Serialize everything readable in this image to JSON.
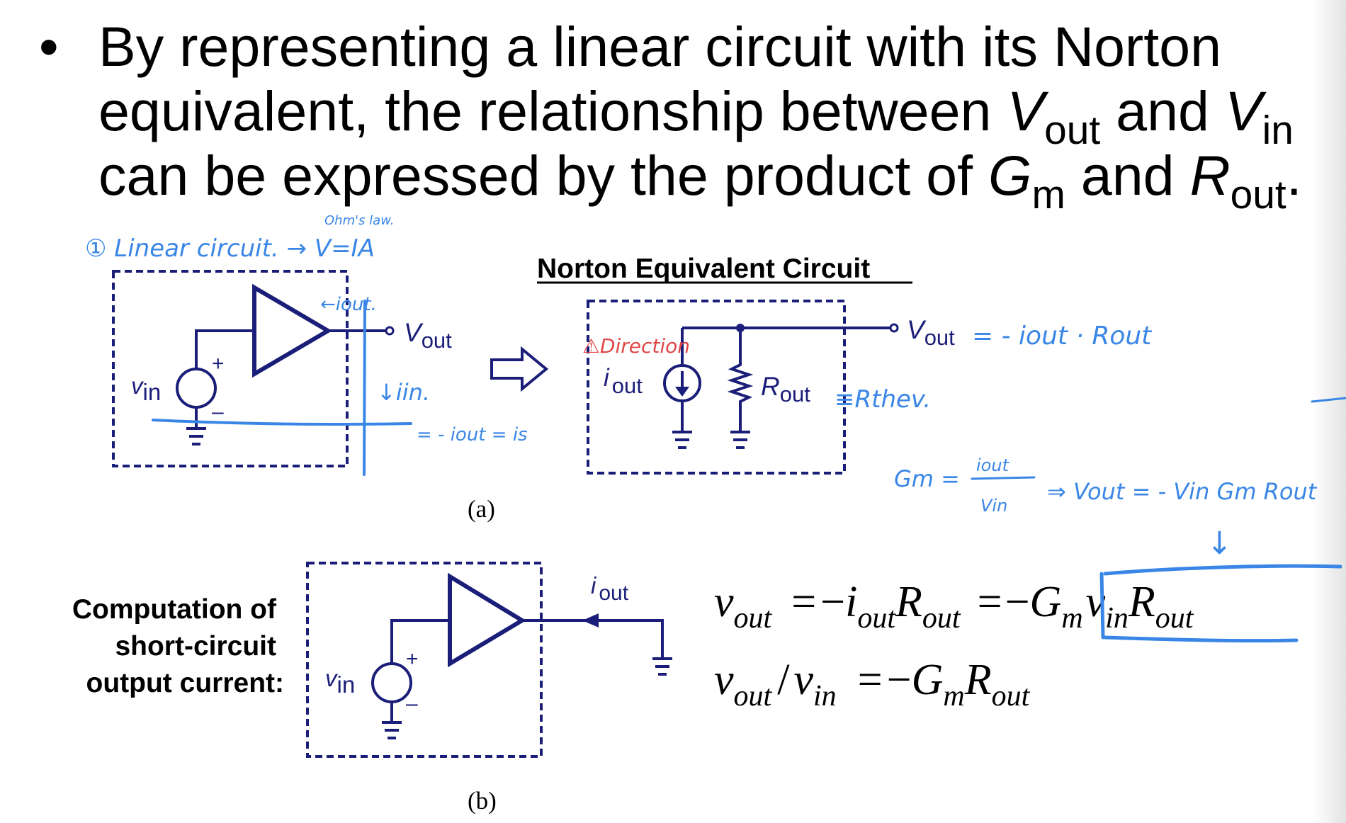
{
  "bullet": {
    "symbol": "•",
    "line1": "By representing a linear circuit with its Norton",
    "line2_a": "equivalent, the relationship between ",
    "V": "V",
    "out": "out",
    "and": " and ",
    "in": "in",
    "line3_a": "can be expressed by the product of ",
    "G": "G",
    "m": "m",
    "R": "R",
    "period": "."
  },
  "diagram": {
    "norton_title": "Norton Equivalent Circuit",
    "caption_a": "(a)",
    "caption_b": "(b)",
    "side_label": [
      "Computation of",
      "short-circuit",
      "output current:"
    ],
    "labels": {
      "v": "v",
      "in": "in",
      "V": "V",
      "out": "out",
      "i": "i",
      "R": "R",
      "plus": "+",
      "minus": "–"
    },
    "equations": {
      "eq1": {
        "lhs": "v",
        "lhs_sub": "out",
        "eq": "=",
        "minus": "−",
        "i": "i",
        "i_sub": "out",
        "R": "R",
        "R_sub": "out",
        "eq2": "=",
        "minus2": "−",
        "G": "G",
        "G_sub": "m",
        "v": "v",
        "v_sub": "in",
        "R2": "R",
        "R2_sub": "out"
      },
      "eq2": {
        "v1": "v",
        "v1_sub": "out",
        "slash": "/",
        "v2": "v",
        "v2_sub": "in",
        "eq": "=",
        "minus": "−",
        "G": "G",
        "G_sub": "m",
        "R": "R",
        "R_sub": "out"
      }
    },
    "annotations": {
      "ohms_law": "Ohm's law.",
      "linear_circuit": "① Linear circuit. → V=IA",
      "i_out_arrow": "←iout.",
      "i_in": "↓iin.",
      "eq_note": "= - iout = is",
      "direction_warning": "⚠Direction",
      "vout_expr": "= - iout · Rout",
      "rthev": "≡Rthev.",
      "gm": "Gm =",
      "gm_num": "iout",
      "gm_den": "Vin",
      "vout_gm": "⇒ Vout = - Vin Gm Rout",
      "down_arrow": "↓"
    },
    "colors": {
      "circuit": "#1a1e78",
      "ink": "#3a86e6",
      "warning": "#e04848"
    }
  }
}
